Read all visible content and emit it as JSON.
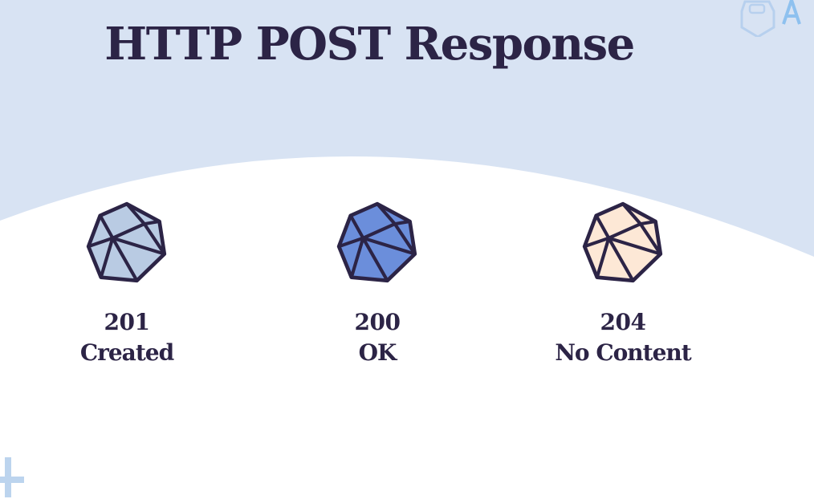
{
  "slide": {
    "title": "HTTP POST Response"
  },
  "colors": {
    "background": "#d8e3f3",
    "panel": "#ffffff",
    "text": "#2c2446",
    "outline": "#2c2446"
  },
  "responses": [
    {
      "code": "201",
      "label": "Created",
      "fill": "#b9cbe3",
      "icon": "icosahedron-icon"
    },
    {
      "code": "200",
      "label": "OK",
      "fill": "#6b8edb",
      "icon": "icosahedron-icon"
    },
    {
      "code": "204",
      "label": "No Content",
      "fill": "#fde8d6",
      "icon": "icosahedron-icon"
    }
  ]
}
